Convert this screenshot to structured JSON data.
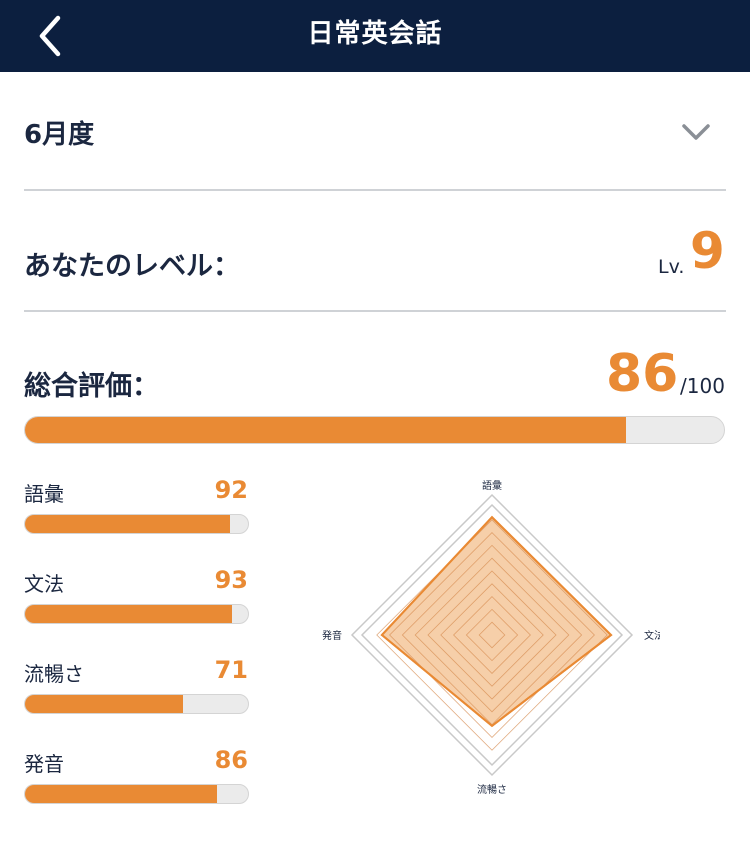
{
  "header": {
    "title": "日常英会話"
  },
  "period": {
    "selected": "6月度"
  },
  "level": {
    "label": "あなたのレベル：",
    "prefix": "Lv.",
    "value": "9"
  },
  "overall": {
    "label": "総合評価：",
    "score": "86",
    "max": "/100",
    "fraction": 0.86
  },
  "skills": [
    {
      "label": "語彙",
      "score": "92",
      "value": 92
    },
    {
      "label": "文法",
      "score": "93",
      "value": 93
    },
    {
      "label": "流暢さ",
      "score": "71",
      "value": 71
    },
    {
      "label": "発音",
      "score": "86",
      "value": 86
    }
  ],
  "chart_data": {
    "type": "radar",
    "axes": [
      "語彙",
      "文法",
      "流暢さ",
      "発音"
    ],
    "values": [
      92,
      93,
      71,
      86
    ],
    "range": [
      0,
      100
    ]
  },
  "colors": {
    "header_bg": "#0c1f3f",
    "accent": "#e98a34",
    "track": "#ebebeb",
    "text": "#1b2740"
  }
}
